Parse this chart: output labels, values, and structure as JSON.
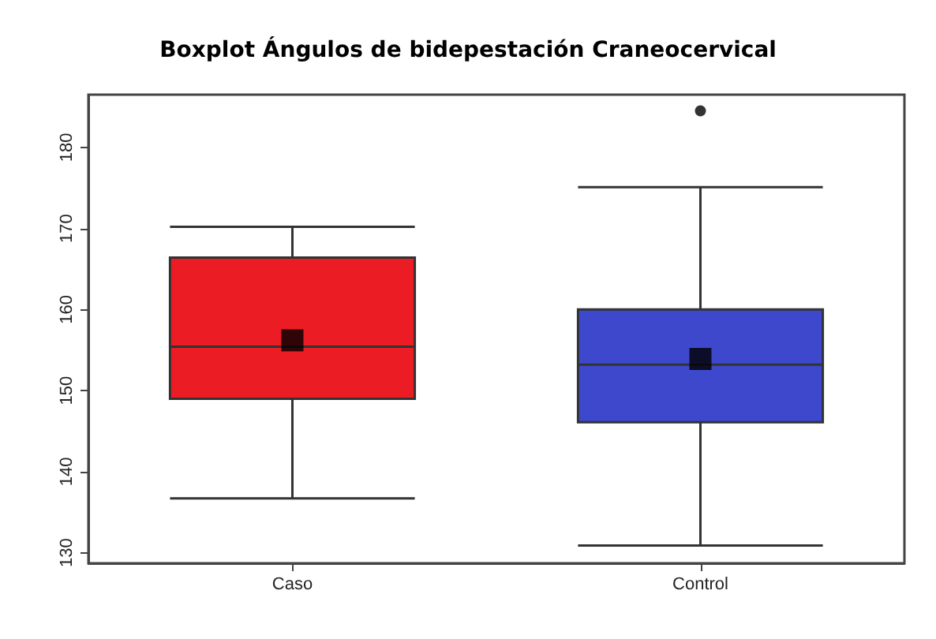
{
  "chart_data": {
    "type": "box",
    "title": "Boxplot Ángulos de bidepestación Craneocervical",
    "categories": [
      "Caso",
      "Control"
    ],
    "boxes": [
      {
        "low": 136.7,
        "q1": 149,
        "median": 155.4,
        "q3": 166.4,
        "high": 170.2,
        "mean": 156.2
      },
      {
        "low": 130.9,
        "q1": 146.1,
        "median": 153.2,
        "q3": 160,
        "high": 175.1,
        "mean": 153.9,
        "outliers": [
          184.5
        ]
      }
    ],
    "colors": [
      "#ec1c24",
      "#3e48cc"
    ],
    "ylim": [
      128.7,
      186.5
    ],
    "yticks": [
      130,
      140,
      150,
      160,
      170,
      180
    ],
    "grid": false
  }
}
